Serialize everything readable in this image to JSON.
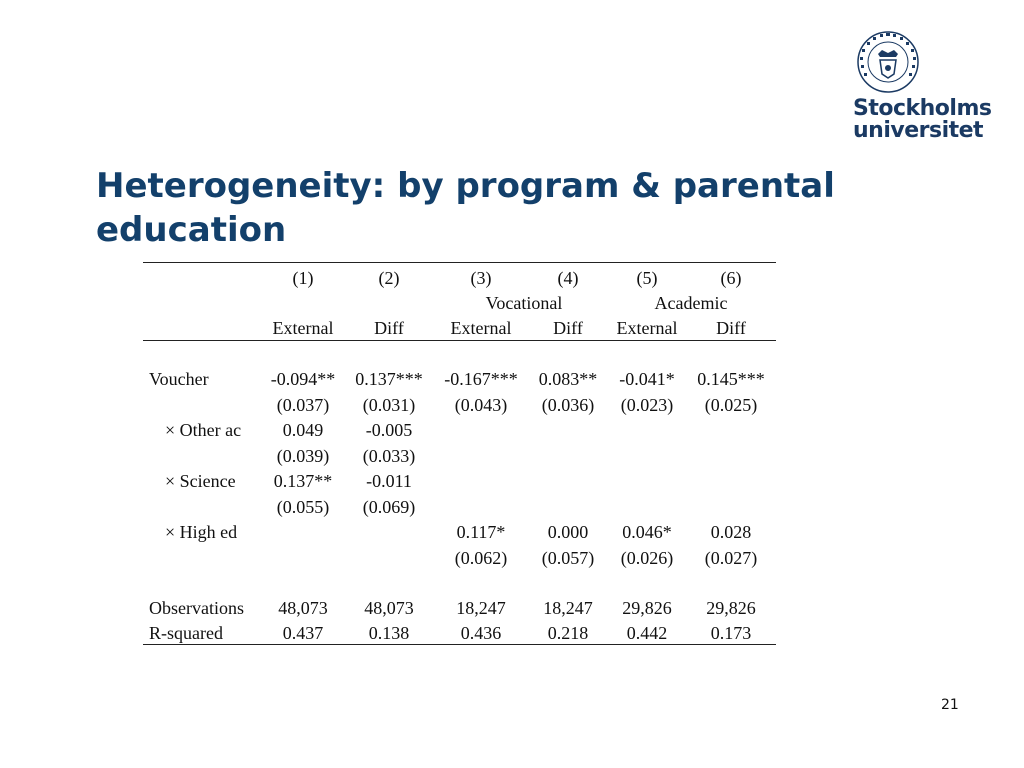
{
  "logo": {
    "name": "Stockholms universitet",
    "line1": "Stockholms",
    "line2": "universitet",
    "seal_text": "UNIVERSITET STOCKHOLMS"
  },
  "colors": {
    "title": "#13406b",
    "logo": "#1b3a63"
  },
  "slide": {
    "title": "Heterogeneity: by program & parental education",
    "page_number": "21"
  },
  "table": {
    "col_numbers": [
      "(1)",
      "(2)",
      "(3)",
      "(4)",
      "(5)",
      "(6)"
    ],
    "groups": [
      "Vocational",
      "Academic"
    ],
    "col_types": [
      "External",
      "Diff",
      "External",
      "Diff",
      "External",
      "Diff"
    ],
    "rows": [
      {
        "label": "Voucher",
        "coef": [
          "-0.094**",
          "0.137***",
          "-0.167***",
          "0.083**",
          "-0.041*",
          "0.145***"
        ],
        "se": [
          "(0.037)",
          "(0.031)",
          "(0.043)",
          "(0.036)",
          "(0.023)",
          "(0.025)"
        ]
      },
      {
        "label": "× Other ac",
        "coef": [
          "0.049",
          "-0.005",
          "",
          "",
          "",
          ""
        ],
        "se": [
          "(0.039)",
          "(0.033)",
          "",
          "",
          "",
          ""
        ]
      },
      {
        "label": "× Science",
        "coef": [
          "0.137**",
          "-0.011",
          "",
          "",
          "",
          ""
        ],
        "se": [
          "(0.055)",
          "(0.069)",
          "",
          "",
          "",
          ""
        ]
      },
      {
        "label": "× High ed",
        "coef": [
          "",
          "",
          "0.117*",
          "0.000",
          "0.046*",
          "0.028"
        ],
        "se": [
          "",
          "",
          "(0.062)",
          "(0.057)",
          "(0.026)",
          "(0.027)"
        ]
      }
    ],
    "stats": [
      {
        "label": "Observations",
        "values": [
          "48,073",
          "48,073",
          "18,247",
          "18,247",
          "29,826",
          "29,826"
        ]
      },
      {
        "label": "R-squared",
        "values": [
          "0.437",
          "0.138",
          "0.436",
          "0.218",
          "0.442",
          "0.173"
        ]
      }
    ]
  }
}
